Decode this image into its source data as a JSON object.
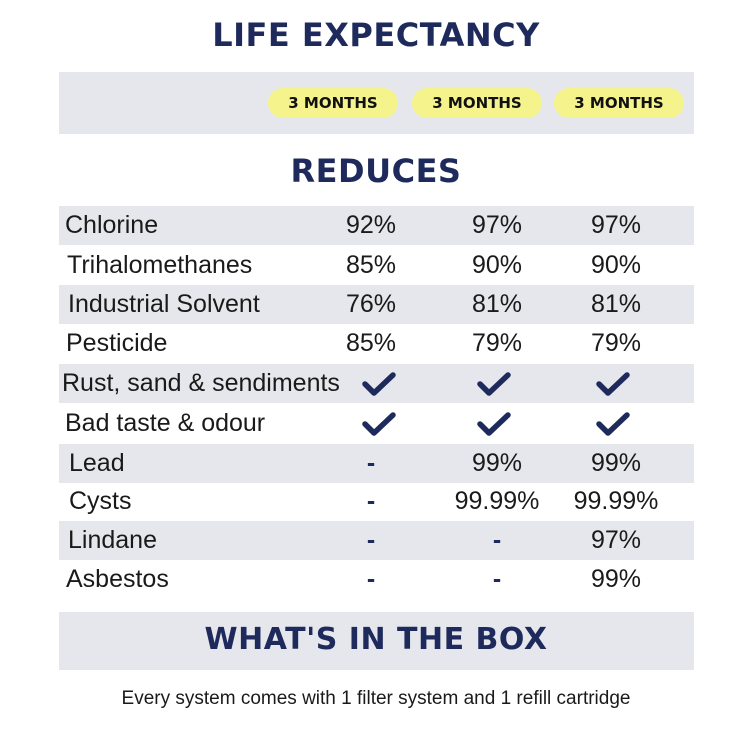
{
  "sections": {
    "life_expectancy": "LIFE EXPECTANCY",
    "reduces": "REDUCES",
    "whats_in_box": "WHAT'S IN THE BOX"
  },
  "life": [
    "3 MONTHS",
    "3 MONTHS",
    "3 MONTHS"
  ],
  "check_color": "#1f2a5c",
  "rows": [
    {
      "label": "Chlorine",
      "values": [
        "92%",
        "97%",
        "97%"
      ]
    },
    {
      "label": "Trihalomethanes",
      "values": [
        "85%",
        "90%",
        "90%"
      ]
    },
    {
      "label": "Industrial Solvent",
      "values": [
        "76%",
        "81%",
        "81%"
      ]
    },
    {
      "label": "Pesticide",
      "values": [
        "85%",
        "79%",
        "79%"
      ]
    },
    {
      "label": "Rust, sand & sendiments",
      "values": [
        "check",
        "check",
        "check"
      ]
    },
    {
      "label": "Bad taste & odour",
      "values": [
        "check",
        "check",
        "check"
      ]
    },
    {
      "label": "Lead",
      "values": [
        "-",
        "99%",
        "99%"
      ]
    },
    {
      "label": "Cysts",
      "values": [
        "-",
        "99.99%",
        "99.99%"
      ]
    },
    {
      "label": "Lindane",
      "values": [
        "-",
        "-",
        "97%"
      ]
    },
    {
      "label": "Asbestos",
      "values": [
        "-",
        "-",
        "99%"
      ]
    }
  ],
  "footer_note": "Every system comes with 1 filter system and 1 refill cartridge"
}
